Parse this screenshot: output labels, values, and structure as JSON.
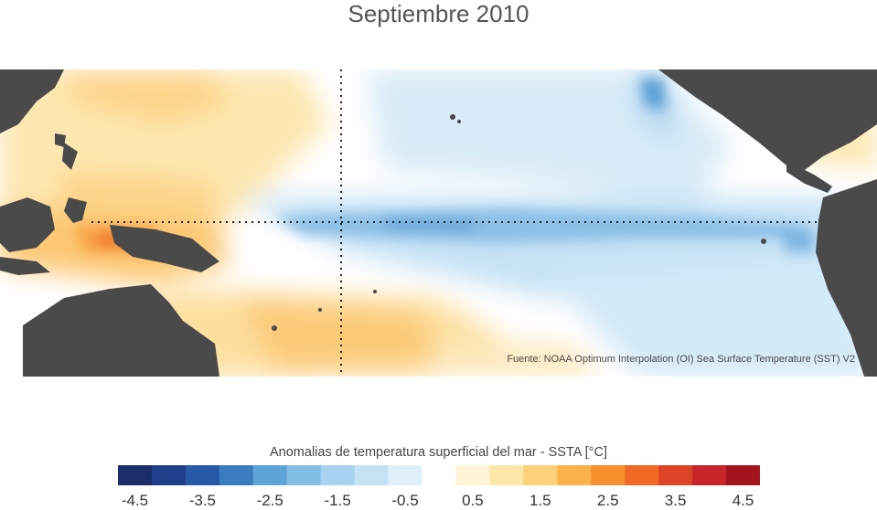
{
  "title": "Septiembre 2010",
  "source": "Fuente: NOAA Optimum Interpolation (OI) Sea Surface Temperature (SST) V2",
  "colorbar": {
    "title": "Anomalias de temperatura superficial del mar - SSTA  [°C]",
    "ticks": [
      "-4.5",
      "-3.5",
      "-2.5",
      "-1.5",
      "-0.5",
      "0.5",
      "1.5",
      "2.5",
      "3.5",
      "4.5"
    ],
    "colors": [
      "#1b2d6b",
      "#203f8a",
      "#2659a8",
      "#3b7cc0",
      "#5ea4d8",
      "#82bde6",
      "#a7d3f0",
      "#c6e3f6",
      "#e0f0fb",
      "#ffffff",
      "#fff4d6",
      "#fee7a8",
      "#fdd07a",
      "#fbb24a",
      "#f7902d",
      "#f06a26",
      "#dd4425",
      "#c8252a",
      "#a3151e"
    ],
    "range": [
      -4.5,
      4.5
    ]
  },
  "map": {
    "land_color": "#4a4a4a",
    "anomaly_pattern": {
      "west_pacific": "warm",
      "equatorial_central_east_pacific": "cool",
      "south_west_pacific": "warm"
    },
    "reference_lines": [
      "equator",
      "dateline"
    ]
  }
}
